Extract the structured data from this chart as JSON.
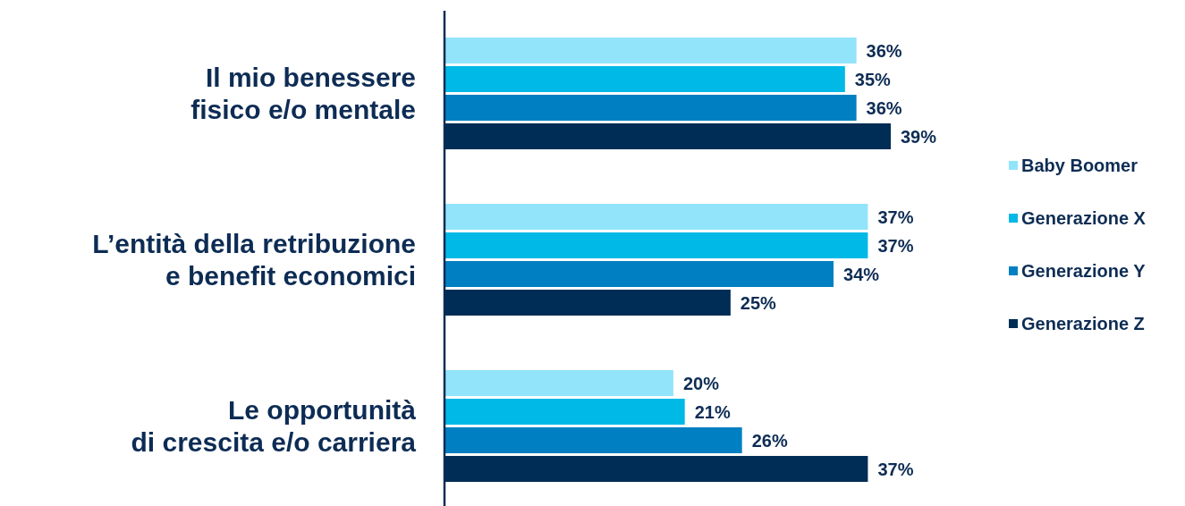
{
  "chart_data": {
    "type": "bar",
    "orientation": "horizontal",
    "categories": [
      "Il mio benessere\nfisico e/o mentale",
      "L’entità della retribuzione\ne benefit economici",
      "Le opportunità\ndi crescita e/o carriera"
    ],
    "series": [
      {
        "name": "Baby Boomer",
        "color": "#92e4fa",
        "values": [
          36,
          37,
          20
        ],
        "value_labels": [
          "36%",
          "37%",
          "20%"
        ]
      },
      {
        "name": "Generazione X",
        "color": "#00b9e6",
        "values": [
          35,
          37,
          21
        ],
        "value_labels": [
          "35%",
          "37%",
          "21%"
        ]
      },
      {
        "name": "Generazione Y",
        "color": "#0080c2",
        "values": [
          36,
          34,
          26
        ],
        "value_labels": [
          "36%",
          "34%",
          "26%"
        ]
      },
      {
        "name": "Generazione Z",
        "color": "#002d55",
        "values": [
          39,
          25,
          37
        ],
        "value_labels": [
          "39%",
          "25%",
          "37%"
        ]
      }
    ],
    "tick_labels": "y",
    "legend": "right",
    "grid": false
  }
}
